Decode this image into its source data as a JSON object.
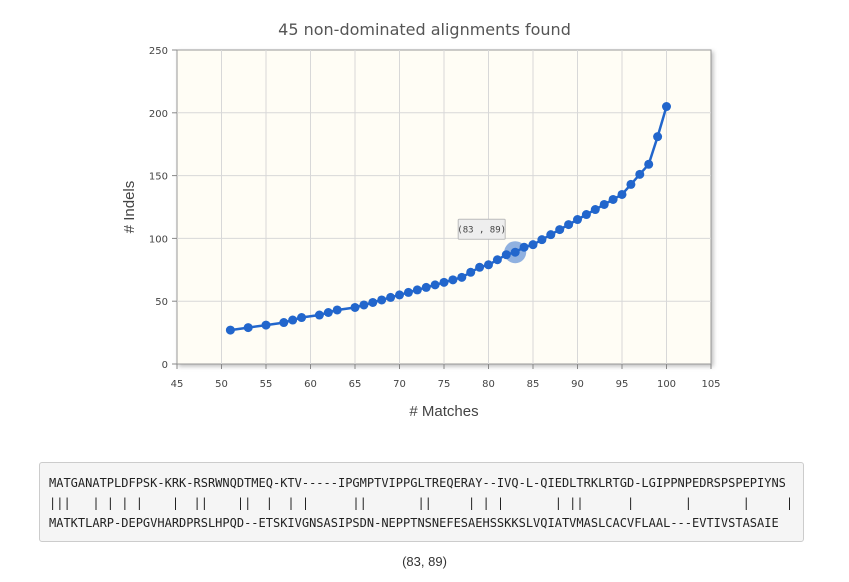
{
  "chart_data": {
    "type": "line",
    "title": "45 non-dominated alignments found",
    "xlabel": "# Matches",
    "ylabel": "# Indels",
    "xlim": [
      45,
      105
    ],
    "ylim": [
      0,
      250
    ],
    "xticks": [
      45,
      50,
      55,
      60,
      65,
      70,
      75,
      80,
      85,
      90,
      95,
      100,
      105
    ],
    "yticks": [
      0,
      50,
      100,
      150,
      200,
      250
    ],
    "grid": true,
    "color": "#2266cc",
    "series": [
      {
        "name": "",
        "points": [
          [
            51,
            27
          ],
          [
            53,
            29
          ],
          [
            55,
            31
          ],
          [
            57,
            33
          ],
          [
            58,
            35
          ],
          [
            59,
            37
          ],
          [
            61,
            39
          ],
          [
            62,
            41
          ],
          [
            63,
            43
          ],
          [
            65,
            45
          ],
          [
            66,
            47
          ],
          [
            67,
            49
          ],
          [
            68,
            51
          ],
          [
            69,
            53
          ],
          [
            70,
            55
          ],
          [
            71,
            57
          ],
          [
            72,
            59
          ],
          [
            73,
            61
          ],
          [
            74,
            63
          ],
          [
            75,
            65
          ],
          [
            76,
            67
          ],
          [
            77,
            69
          ],
          [
            78,
            73
          ],
          [
            79,
            77
          ],
          [
            80,
            79
          ],
          [
            81,
            83
          ],
          [
            82,
            87
          ],
          [
            83,
            89
          ],
          [
            84,
            93
          ],
          [
            85,
            95
          ],
          [
            86,
            99
          ],
          [
            87,
            103
          ],
          [
            88,
            107
          ],
          [
            89,
            111
          ],
          [
            90,
            115
          ],
          [
            91,
            119
          ],
          [
            92,
            123
          ],
          [
            93,
            127
          ],
          [
            94,
            131
          ],
          [
            95,
            135
          ],
          [
            96,
            143
          ],
          [
            97,
            151
          ],
          [
            98,
            159
          ],
          [
            99,
            181
          ],
          [
            100,
            205
          ]
        ]
      }
    ],
    "highlight": {
      "x": 83,
      "y": 89,
      "label": "(83 , 89)"
    }
  },
  "alignment": {
    "line1": "MATGANATPLDFPSK-KRK-RSRWNQDTMEQ-KTV-----IPGMPTVIPPGLTREQERAY--IVQ-L-QIEDLTRKLRTGD-LGIPPNPEDRSPSPEPIYNS",
    "line2": "|||   | | | |    |  ||    ||  |  | |      ||       ||     | | |       | ||      |       |       |     |",
    "line3": "MATKTLARP-DEPGVHARDPRSLHPQD--ETSKIVGNSASIPSDN-NEPPTNSNEFESAEHSSKKSLVQIATVMASLCACVFLAAL---EVTIVSTASAIE"
  },
  "selected_point_label": "(83, 89)"
}
